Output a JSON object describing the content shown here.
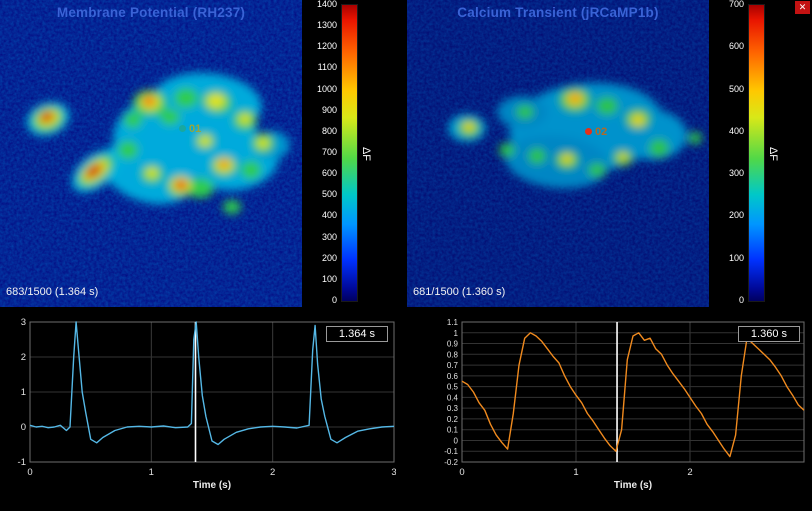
{
  "app": {
    "close_button": "✕"
  },
  "left_panel": {
    "title": "Membrane Potential (RH237)",
    "frame_text": "683/1500 (1.364 s)",
    "marker_label": "01",
    "marker_color": "#18a8a0",
    "marker_text_color": "#97a53c",
    "colorbar": {
      "label": "ΔF",
      "ticks": [
        "1400",
        "1300",
        "1200",
        "1100",
        "1000",
        "900",
        "800",
        "700",
        "600",
        "500",
        "400",
        "300",
        "200",
        "100",
        "0"
      ]
    },
    "blobs": [
      [
        185,
        133,
        72,
        46,
        -6,
        "#00aadc"
      ],
      [
        148,
        172,
        48,
        30,
        18,
        "#00aadc"
      ],
      [
        237,
        162,
        42,
        28,
        -10,
        "#00aadc"
      ],
      [
        207,
        103,
        55,
        30,
        5,
        "#00aadc"
      ],
      [
        48,
        119,
        22,
        16,
        -20,
        "#00b4e0"
      ],
      [
        96,
        171,
        28,
        16,
        -38,
        "#00b4e0"
      ],
      [
        272,
        145,
        18,
        14,
        0,
        "#0098d0"
      ],
      [
        150,
        103,
        17,
        13,
        0,
        "#2ecc4e"
      ],
      [
        186,
        98,
        12,
        10,
        0,
        "#2ecc4e"
      ],
      [
        217,
        102,
        15,
        11,
        10,
        "#2ecc4e"
      ],
      [
        245,
        120,
        12,
        10,
        0,
        "#2ecc4e"
      ],
      [
        263,
        143,
        11,
        10,
        0,
        "#2ecc4e"
      ],
      [
        251,
        170,
        10,
        9,
        0,
        "#2ecc4e"
      ],
      [
        224,
        166,
        13,
        10,
        0,
        "#2ecc4e"
      ],
      [
        200,
        188,
        14,
        10,
        0,
        "#2ecc4e"
      ],
      [
        180,
        186,
        13,
        11,
        0,
        "#2ecc4e"
      ],
      [
        152,
        174,
        11,
        9,
        0,
        "#2ecc4e"
      ],
      [
        128,
        150,
        10,
        9,
        0,
        "#2ecc4e"
      ],
      [
        133,
        120,
        9,
        8,
        0,
        "#2ecc4e"
      ],
      [
        170,
        117,
        10,
        8,
        0,
        "#2ecc4e"
      ],
      [
        205,
        141,
        10,
        8,
        0,
        "#2ecc4e"
      ],
      [
        48,
        119,
        16,
        12,
        -20,
        "#2ecc4e"
      ],
      [
        96,
        171,
        21,
        11,
        -38,
        "#2ecc4e"
      ],
      [
        232,
        207,
        9,
        7,
        0,
        "#2ecc4e"
      ],
      [
        150,
        102,
        10,
        8,
        0,
        "#e6e41e"
      ],
      [
        216,
        101,
        9,
        7,
        0,
        "#e6e41e"
      ],
      [
        224,
        165,
        9,
        7,
        0,
        "#e6e41e"
      ],
      [
        181,
        185,
        10,
        8,
        0,
        "#e6e41e"
      ],
      [
        205,
        141,
        6,
        5,
        0,
        "#e6e41e"
      ],
      [
        263,
        143,
        6,
        5,
        0,
        "#e6e41e"
      ],
      [
        48,
        118,
        11,
        8,
        -20,
        "#e6e41e"
      ],
      [
        95,
        171,
        15,
        8,
        -38,
        "#e6e41e"
      ],
      [
        152,
        173,
        6,
        5,
        0,
        "#e6e41e"
      ],
      [
        245,
        119,
        6,
        5,
        0,
        "#e6e41e"
      ],
      [
        149,
        101,
        6,
        5,
        0,
        "#f2600e"
      ],
      [
        181,
        185,
        6,
        5,
        0,
        "#e62410"
      ],
      [
        47,
        117,
        7,
        5,
        -20,
        "#d01208"
      ],
      [
        94,
        171,
        10,
        5,
        -38,
        "#d01208"
      ],
      [
        224,
        164,
        5,
        4,
        0,
        "#f07c12"
      ]
    ]
  },
  "right_panel": {
    "title": "Calcium Transient (jRCaMP1b)",
    "frame_text": "681/1500 (1.360 s)",
    "marker_label": "02",
    "marker_color": "#e63018",
    "marker_text_color": "#b06a28",
    "colorbar": {
      "label": "ΔF",
      "ticks": [
        "700",
        "600",
        "500",
        "400",
        "300",
        "200",
        "100",
        "0"
      ]
    },
    "blobs": [
      [
        180,
        128,
        78,
        45,
        -5,
        "#0092cc"
      ],
      [
        150,
        162,
        52,
        26,
        6,
        "#0086c4"
      ],
      [
        60,
        128,
        19,
        14,
        0,
        "#009ed2"
      ],
      [
        245,
        135,
        35,
        25,
        0,
        "#0092cc"
      ],
      [
        115,
        112,
        25,
        16,
        0,
        "#0086c4"
      ],
      [
        168,
        100,
        16,
        12,
        0,
        "#2cc24a"
      ],
      [
        200,
        106,
        11,
        9,
        0,
        "#2cc24a"
      ],
      [
        231,
        119,
        13,
        10,
        0,
        "#2cc24a"
      ],
      [
        252,
        148,
        10,
        9,
        0,
        "#2cc24a"
      ],
      [
        216,
        158,
        10,
        8,
        0,
        "#2cc24a"
      ],
      [
        160,
        160,
        12,
        9,
        0,
        "#2cc24a"
      ],
      [
        130,
        156,
        9,
        8,
        0,
        "#2cc24a"
      ],
      [
        100,
        150,
        8,
        7,
        0,
        "#2cc24a"
      ],
      [
        62,
        128,
        11,
        9,
        0,
        "#2cc24a"
      ],
      [
        288,
        138,
        7,
        6,
        0,
        "#2cc24a"
      ],
      [
        118,
        112,
        9,
        7,
        0,
        "#2cc24a"
      ],
      [
        190,
        170,
        9,
        7,
        0,
        "#2cc24a"
      ],
      [
        168,
        99,
        9,
        7,
        0,
        "#e6d41e"
      ],
      [
        231,
        120,
        7,
        6,
        0,
        "#e6d41e"
      ],
      [
        160,
        159,
        6,
        5,
        0,
        "#e6d41e"
      ],
      [
        62,
        127,
        6,
        5,
        0,
        "#e6d41e"
      ],
      [
        216,
        157,
        5,
        4,
        0,
        "#e6d41e"
      ],
      [
        168,
        98,
        5,
        4,
        0,
        "#f08a10"
      ]
    ]
  },
  "chart_data": [
    {
      "type": "line",
      "name": "membrane-potential-trace",
      "color": "#55b8e6",
      "xlabel": "Time (s)",
      "xlim": [
        0,
        3
      ],
      "ylim": [
        -1,
        3
      ],
      "xtick_vals": [
        0,
        1,
        2,
        3
      ],
      "xtick_labels": [
        "0",
        "1",
        "2",
        "3"
      ],
      "xgrid_vals": [
        0,
        1,
        2,
        3
      ],
      "ytick_vals": [
        3,
        2,
        1,
        0,
        -1
      ],
      "ytick_labels": [
        "3",
        "2",
        "1",
        "0",
        "-1"
      ],
      "ytick_font": 9.5,
      "cursor_time": 1.364,
      "cursor_label": "1.364 s",
      "x": [
        0,
        0.05,
        0.1,
        0.15,
        0.2,
        0.25,
        0.3,
        0.33,
        0.36,
        0.38,
        0.4,
        0.43,
        0.46,
        0.5,
        0.55,
        0.6,
        0.7,
        0.8,
        0.9,
        1,
        1.1,
        1.2,
        1.3,
        1.33,
        1.35,
        1.37,
        1.39,
        1.42,
        1.45,
        1.5,
        1.55,
        1.6,
        1.7,
        1.8,
        1.9,
        2,
        2.1,
        2.2,
        2.3,
        2.33,
        2.35,
        2.37,
        2.4,
        2.43,
        2.48,
        2.53,
        2.6,
        2.7,
        2.8,
        2.9,
        3
      ],
      "y": [
        0.05,
        0,
        0.02,
        -0.02,
        0,
        0.05,
        -0.1,
        0,
        2,
        3,
        2.2,
        1,
        0.4,
        -0.35,
        -0.45,
        -0.3,
        -0.1,
        0,
        0.02,
        0,
        0.03,
        -0.02,
        0,
        0.1,
        2.5,
        3,
        2,
        0.9,
        0.3,
        -0.4,
        -0.5,
        -0.35,
        -0.15,
        -0.05,
        0,
        0.02,
        0,
        -0.03,
        0.05,
        2.2,
        2.9,
        1.8,
        0.8,
        0.3,
        -0.35,
        -0.45,
        -0.3,
        -0.12,
        -0.05,
        0,
        0.02
      ]
    },
    {
      "type": "line",
      "name": "calcium-transient-trace",
      "color": "#f08a1e",
      "xlabel": "Time (s)",
      "xlim": [
        0,
        3
      ],
      "ylim": [
        -0.2,
        1.1
      ],
      "xtick_vals": [
        0,
        1,
        2
      ],
      "xtick_labels": [
        "0",
        "1",
        "2"
      ],
      "xgrid_vals": [
        0,
        1,
        2,
        3
      ],
      "ytick_vals": [
        1.1,
        1,
        0.9,
        0.8,
        0.7,
        0.6,
        0.5,
        0.4,
        0.3,
        0.2,
        0.1,
        0,
        -0.1,
        -0.2
      ],
      "ytick_labels": [
        "1.1",
        "1",
        "0.9",
        "0.8",
        "0.7",
        "0.6",
        "0.5",
        "0.4",
        "0.3",
        "0.2",
        "0.1",
        "0",
        "-0.1",
        "-0.2"
      ],
      "ytick_font": 8,
      "cursor_time": 1.36,
      "cursor_label": "1.360 s",
      "x": [
        0,
        0.05,
        0.1,
        0.15,
        0.2,
        0.25,
        0.3,
        0.35,
        0.4,
        0.45,
        0.5,
        0.55,
        0.6,
        0.65,
        0.7,
        0.75,
        0.8,
        0.85,
        0.9,
        0.95,
        1,
        1.05,
        1.1,
        1.15,
        1.2,
        1.25,
        1.3,
        1.35,
        1.4,
        1.45,
        1.5,
        1.55,
        1.6,
        1.65,
        1.7,
        1.75,
        1.8,
        1.85,
        1.9,
        1.95,
        2,
        2.05,
        2.1,
        2.15,
        2.2,
        2.25,
        2.3,
        2.35,
        2.4,
        2.45,
        2.5,
        2.55,
        2.6,
        2.65,
        2.7,
        2.75,
        2.8,
        2.85,
        2.9,
        2.95,
        3
      ],
      "y": [
        0.55,
        0.52,
        0.45,
        0.35,
        0.28,
        0.15,
        0.05,
        -0.02,
        -0.08,
        0.25,
        0.7,
        0.95,
        1,
        0.97,
        0.92,
        0.85,
        0.78,
        0.72,
        0.6,
        0.5,
        0.42,
        0.35,
        0.25,
        0.18,
        0.1,
        0.02,
        -0.05,
        -0.1,
        0.1,
        0.75,
        0.97,
        1,
        0.93,
        0.95,
        0.85,
        0.8,
        0.7,
        0.62,
        0.55,
        0.48,
        0.4,
        0.32,
        0.25,
        0.15,
        0.08,
        0,
        -0.08,
        -0.15,
        0.05,
        0.6,
        0.95,
        0.9,
        0.85,
        0.8,
        0.75,
        0.68,
        0.6,
        0.5,
        0.42,
        0.33,
        0.28
      ]
    }
  ]
}
